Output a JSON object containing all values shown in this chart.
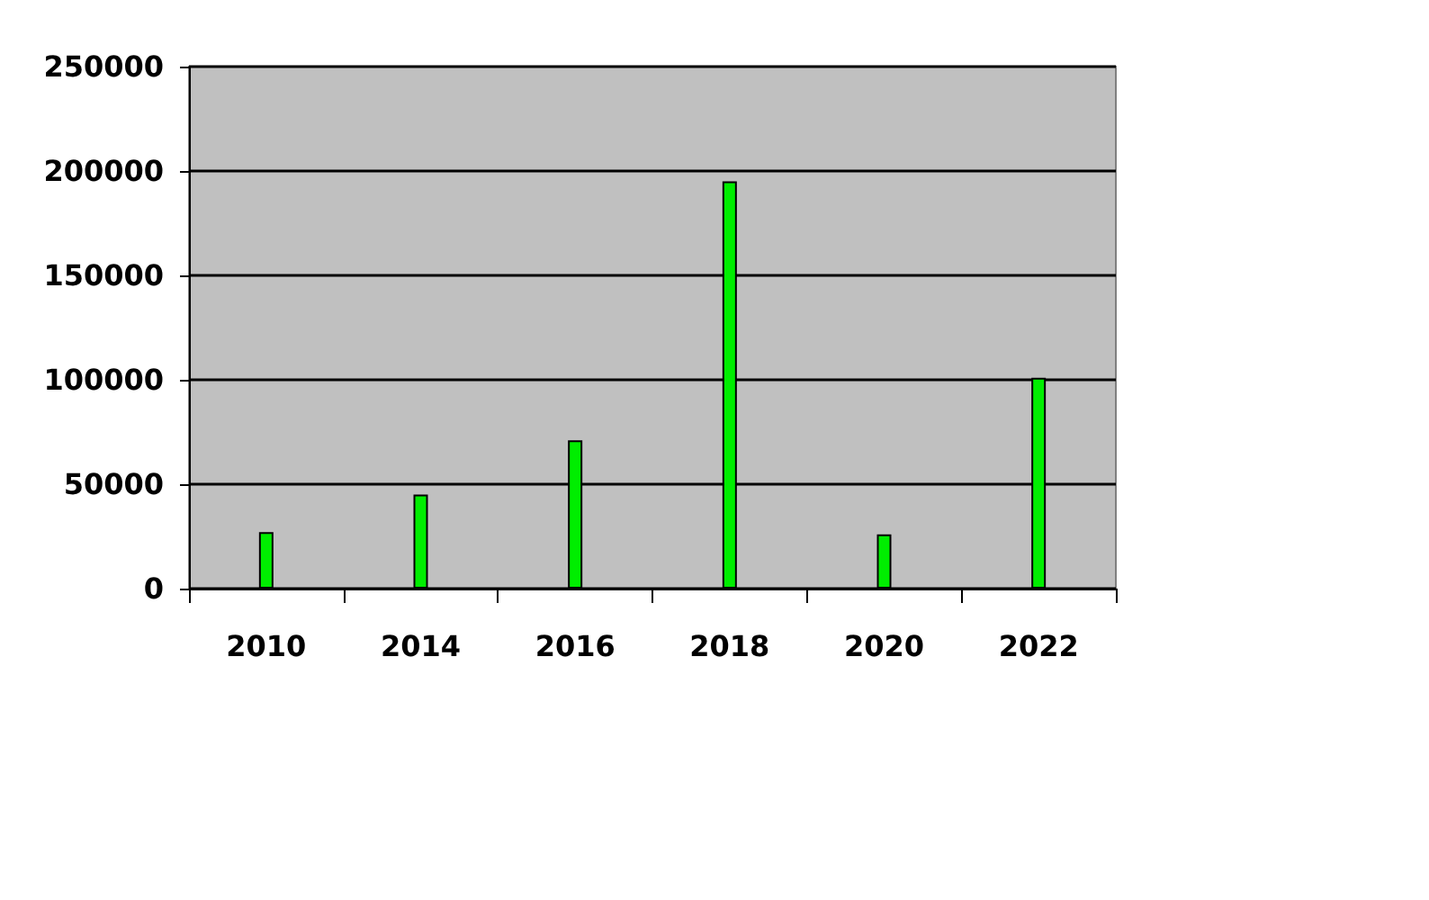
{
  "chart_data": {
    "type": "bar",
    "categories": [
      "2010",
      "2014",
      "2016",
      "2018",
      "2020",
      "2022"
    ],
    "values": [
      27000,
      45000,
      71000,
      195000,
      26000,
      101000
    ],
    "color": "#00ee00",
    "ylim": [
      0,
      250000
    ],
    "yticks": [
      0,
      50000,
      100000,
      150000,
      200000,
      250000
    ],
    "grid": "y"
  }
}
